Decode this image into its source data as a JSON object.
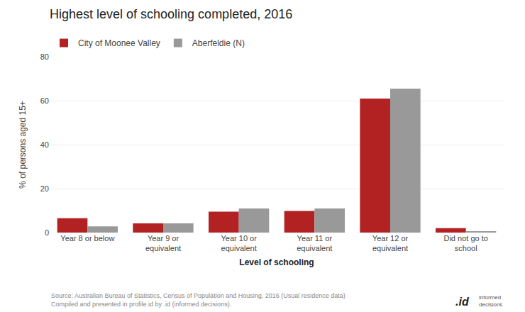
{
  "chart_data": {
    "type": "bar",
    "title": "Highest level of schooling completed, 2016",
    "categories": [
      "Year 8 or below",
      "Year 9 or\nequivalent",
      "Year 10 or\nequivalent",
      "Year 11 or\nequivalent",
      "Year 12 or\nequivalent",
      "Did not go to\nschool"
    ],
    "series": [
      {
        "name": "City of Moonee Valley",
        "color": "#b22222",
        "values": [
          6.5,
          4.2,
          9.5,
          9.8,
          61.0,
          2.0
        ]
      },
      {
        "name": "Aberfeldie (N)",
        "color": "#999999",
        "values": [
          2.8,
          4.2,
          11.0,
          11.0,
          65.5,
          0.5
        ]
      }
    ],
    "ylabel": "% of persons aged 15+",
    "xlabel": "Level of schooling",
    "ylim": [
      0,
      80
    ],
    "yticks": [
      0,
      20,
      40,
      60,
      80
    ],
    "grid": true,
    "legend": "upper left",
    "annotations": [
      "Source: Australian Bureau of Statistics, Census of Population and Housing, 2016 (Usual residence data)\nCompiled and presented in profile.id by .id (informed decisions).",
      ".id",
      "informed\ndecisions"
    ]
  }
}
